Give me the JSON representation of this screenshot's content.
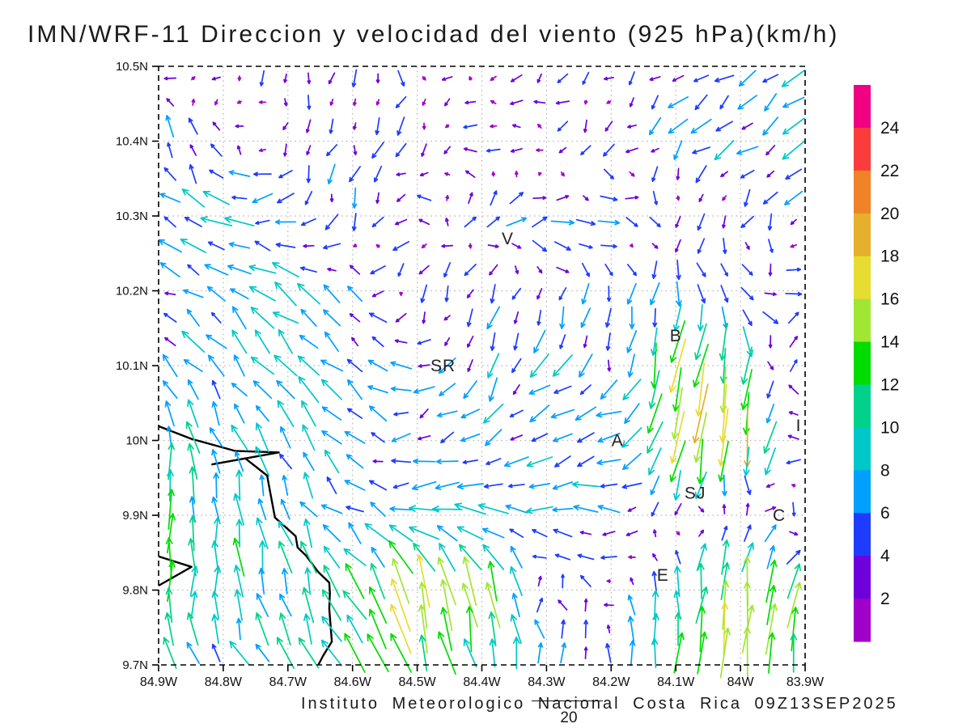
{
  "title": "IMN/WRF-11 Direccion y velocidad del viento (925 hPa)(km/h)",
  "footer": {
    "text": "Instituto Meteorologico Nacional Costa Rica 09Z13SEP2025",
    "reference_label": "20"
  },
  "chart_data": {
    "type": "quiver",
    "units": "km/h",
    "level": "925 hPa",
    "lon_tick_labels": [
      "84.9W",
      "84.8W",
      "84.7W",
      "84.6W",
      "84.5W",
      "84.4W",
      "84.3W",
      "84.2W",
      "84.1W",
      "84W",
      "83.9W"
    ],
    "lat_tick_labels": [
      "10.5N",
      "10.4N",
      "10.3N",
      "10.2N",
      "10.1N",
      "10N",
      "9.9N",
      "9.8N",
      "9.7N"
    ],
    "lon_range": [
      84.9,
      83.9
    ],
    "lat_range": [
      10.5,
      9.7
    ],
    "grid_step_deg": 0.1,
    "speed_colorbar": {
      "thresholds": [
        2,
        4,
        6,
        8,
        10,
        12,
        14,
        16,
        18,
        20,
        22,
        24
      ],
      "colors": [
        "#A000C8",
        "#6E00DC",
        "#1E3CFF",
        "#00A0FF",
        "#00C8C8",
        "#00D28C",
        "#00DC00",
        "#A0E632",
        "#E6DC32",
        "#E6AF2D",
        "#F08228",
        "#FA3C3C",
        "#F00082"
      ]
    },
    "reference_vector": {
      "value": 20,
      "label": "20"
    },
    "stations": [
      {
        "label": "V",
        "lon": 84.36,
        "lat": 10.27
      },
      {
        "label": "SR",
        "lon": 84.46,
        "lat": 10.1
      },
      {
        "label": "B",
        "lon": 84.1,
        "lat": 10.14
      },
      {
        "label": "A",
        "lon": 84.19,
        "lat": 10.0
      },
      {
        "label": "I",
        "lon": 83.91,
        "lat": 10.02
      },
      {
        "label": "SJ",
        "lon": 84.07,
        "lat": 9.93
      },
      {
        "label": "C",
        "lon": 83.94,
        "lat": 9.9
      },
      {
        "label": "E",
        "lon": 84.12,
        "lat": 9.82
      }
    ],
    "coastline": [
      [
        [
          84.9,
          10.019
        ],
        [
          84.849,
          10.002
        ],
        [
          84.782,
          9.986
        ],
        [
          84.714,
          9.984
        ],
        [
          84.817,
          9.968
        ],
        [
          84.766,
          9.976
        ],
        [
          84.732,
          9.953
        ],
        [
          84.73,
          9.943
        ],
        [
          84.72,
          9.897
        ],
        [
          84.688,
          9.872
        ],
        [
          84.685,
          9.857
        ],
        [
          84.672,
          9.846
        ],
        [
          84.653,
          9.824
        ],
        [
          84.636,
          9.81
        ],
        [
          84.635,
          9.796
        ],
        [
          84.636,
          9.775
        ],
        [
          84.632,
          9.731
        ],
        [
          84.645,
          9.713
        ],
        [
          84.653,
          9.7
        ]
      ],
      [
        [
          84.9,
          9.845
        ],
        [
          84.849,
          9.831
        ],
        [
          84.9,
          9.806
        ]
      ]
    ],
    "wind_grid": {
      "lons": [
        84.9,
        84.8,
        84.7,
        84.6,
        84.5,
        84.4,
        84.3,
        84.2,
        84.1,
        84.0,
        83.9
      ],
      "lats": [
        10.5,
        10.4,
        10.3,
        10.2,
        10.1,
        10.0,
        9.9,
        9.8,
        9.7
      ],
      "u": [
        [
          -2,
          0,
          0,
          0,
          0,
          -3,
          -3,
          -2,
          -4,
          -4,
          -5
        ],
        [
          1,
          -2,
          -2,
          -1,
          -2,
          -3,
          -3,
          -2,
          -4,
          -5,
          -5
        ],
        [
          -5,
          -8,
          -4,
          -1,
          -6,
          4,
          6,
          5,
          0,
          -2,
          -4
        ],
        [
          -5,
          -5,
          -7,
          -4,
          0,
          -4,
          0,
          -1,
          0,
          3,
          5
        ],
        [
          -4,
          -5,
          -6,
          -4,
          -5,
          -1,
          -5,
          -1,
          -3,
          -1,
          1
        ],
        [
          -1,
          -3,
          -4,
          -4,
          -4,
          -5,
          -6,
          -8,
          -4,
          -1,
          -6
        ],
        [
          0,
          -1,
          -3,
          -5,
          -9,
          -10,
          -6,
          -5,
          -2,
          2,
          2
        ],
        [
          1,
          0,
          -1,
          -6,
          -3,
          -2,
          0,
          -2,
          1,
          1,
          3
        ],
        [
          -4,
          -5,
          -4,
          -5,
          -4,
          -3,
          -1,
          0,
          1,
          2,
          1
        ]
      ],
      "v": [
        [
          2,
          -3,
          -3,
          -4,
          -3,
          0,
          -1,
          -2,
          -3,
          -3,
          -3
        ],
        [
          8,
          2,
          -2,
          -4,
          -4,
          0,
          -1,
          -2,
          -4,
          -4,
          -4
        ],
        [
          4,
          2,
          -3,
          -5,
          1,
          4,
          1,
          0,
          -3,
          -3,
          -4
        ],
        [
          1,
          4,
          5,
          3,
          -4,
          -4,
          -5,
          -4,
          -6,
          -3,
          2
        ],
        [
          5,
          5,
          6,
          5,
          1,
          -7,
          -5,
          -5,
          -15,
          -12,
          7
        ],
        [
          9,
          8,
          6,
          5,
          -3,
          -4,
          -2,
          -1,
          -16,
          -19,
          3
        ],
        [
          11,
          9,
          7,
          3,
          1,
          2,
          -1,
          0,
          -2,
          5,
          -4
        ],
        [
          12,
          11,
          9,
          10,
          16,
          15,
          3,
          1,
          10,
          16,
          12
        ],
        [
          7,
          6,
          7,
          10,
          12,
          8,
          7,
          5,
          12,
          17,
          9
        ]
      ]
    }
  }
}
